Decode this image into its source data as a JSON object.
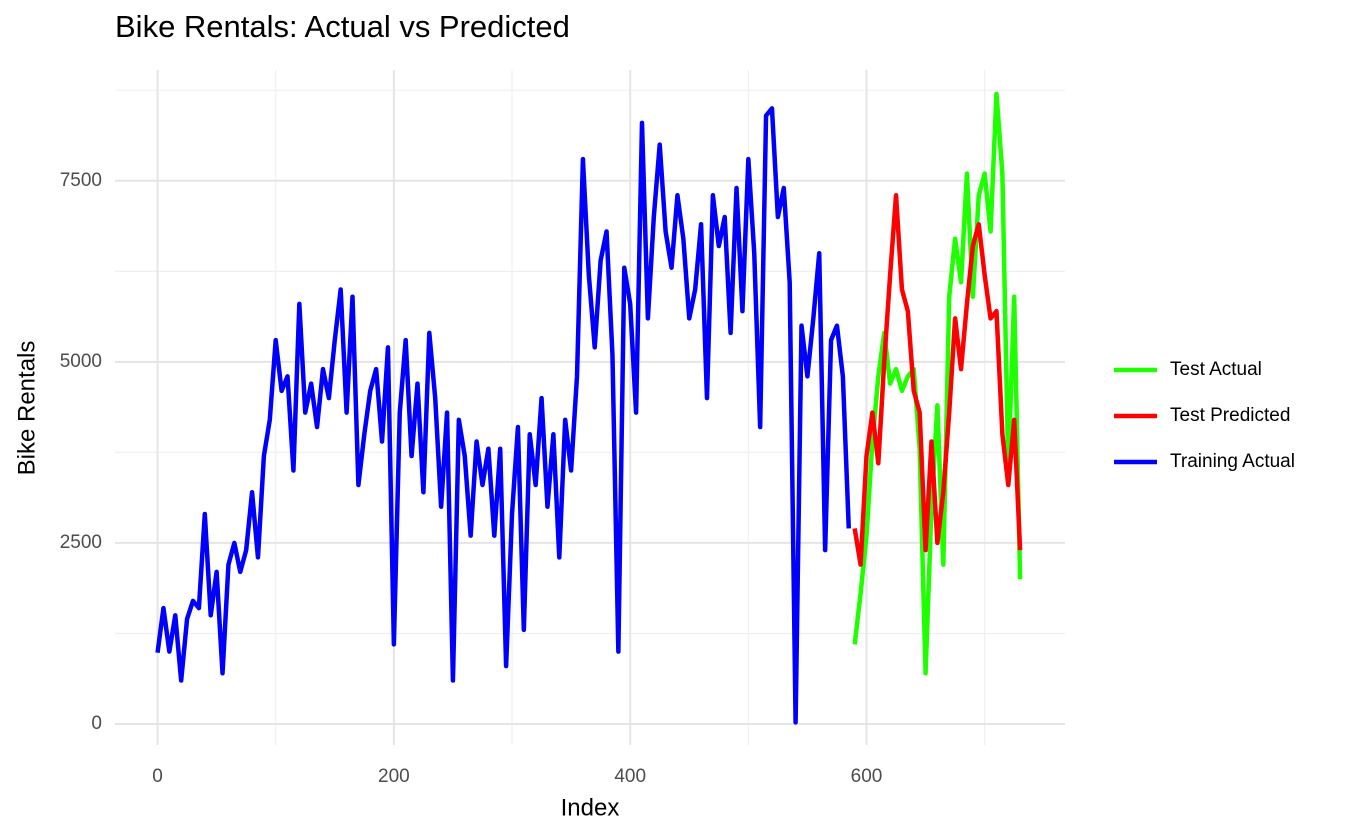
{
  "chart_data": {
    "type": "line",
    "title": "Bike Rentals: Actual vs Predicted",
    "x_label": "Index",
    "y_label": "Bike Rentals",
    "xlim": [
      -36,
      768
    ],
    "ylim": [
      -290,
      9030
    ],
    "xticks": [
      0,
      200,
      400,
      600
    ],
    "yticks": [
      0,
      2500,
      5000,
      7500
    ],
    "x_minor_gridlines": [
      100,
      300,
      500,
      700
    ],
    "y_minor_gridlines": [
      1250,
      3750,
      6250,
      8750
    ],
    "grid": true,
    "legend": "right",
    "series": [
      {
        "name": "Training Actual",
        "color": "#0000ff",
        "x": [
          0,
          5,
          10,
          15,
          20,
          25,
          30,
          35,
          40,
          45,
          50,
          55,
          60,
          65,
          70,
          75,
          80,
          85,
          90,
          95,
          100,
          105,
          110,
          115,
          120,
          125,
          130,
          135,
          140,
          145,
          150,
          155,
          160,
          165,
          170,
          175,
          180,
          185,
          190,
          195,
          200,
          205,
          210,
          215,
          220,
          225,
          230,
          235,
          240,
          245,
          250,
          255,
          260,
          265,
          270,
          275,
          280,
          285,
          290,
          295,
          300,
          305,
          310,
          315,
          320,
          325,
          330,
          335,
          340,
          345,
          350,
          355,
          360,
          365,
          370,
          375,
          380,
          385,
          390,
          395,
          400,
          405,
          410,
          415,
          420,
          425,
          430,
          435,
          440,
          445,
          450,
          455,
          460,
          465,
          470,
          475,
          480,
          485,
          490,
          495,
          500,
          505,
          510,
          515,
          520,
          525,
          530,
          535,
          540,
          545,
          550,
          555,
          560,
          565,
          570,
          575,
          580,
          585
        ],
        "values": [
          985,
          1600,
          1000,
          1500,
          600,
          1450,
          1700,
          1600,
          2900,
          1500,
          2100,
          700,
          2200,
          2500,
          2100,
          2400,
          3200,
          2300,
          3700,
          4200,
          5300,
          4600,
          4800,
          3500,
          5800,
          4300,
          4700,
          4100,
          4900,
          4500,
          5300,
          6000,
          4300,
          5900,
          3300,
          4000,
          4600,
          4900,
          3900,
          5200,
          1100,
          4300,
          5300,
          3700,
          4700,
          3200,
          5400,
          4500,
          3000,
          4300,
          600,
          4200,
          3700,
          2600,
          3900,
          3300,
          3800,
          2600,
          3800,
          800,
          2900,
          4100,
          1300,
          4000,
          3300,
          4500,
          3000,
          4000,
          2300,
          4200,
          3500,
          4800,
          7800,
          6200,
          5200,
          6400,
          6800,
          5100,
          1000,
          6300,
          5800,
          4300,
          8300,
          5600,
          7000,
          8000,
          6800,
          6300,
          7300,
          6700,
          5600,
          6000,
          6900,
          4500,
          7300,
          6600,
          7000,
          5400,
          7400,
          5700,
          7800,
          6500,
          4100,
          8400,
          8500,
          7000,
          7400,
          6100,
          22,
          5500,
          4800,
          5600,
          6500,
          2400,
          5300,
          5500,
          4800,
          2700
        ]
      },
      {
        "name": "Test Actual",
        "color": "#1eff00",
        "x": [
          590,
          595,
          600,
          605,
          610,
          615,
          620,
          625,
          630,
          635,
          640,
          645,
          650,
          655,
          660,
          665,
          670,
          675,
          680,
          685,
          690,
          695,
          700,
          705,
          710,
          715,
          720,
          725,
          730
        ],
        "values": [
          1100,
          1800,
          2600,
          3900,
          4800,
          5400,
          4700,
          4900,
          4600,
          4800,
          4900,
          3800,
          700,
          3000,
          4400,
          2200,
          5900,
          6700,
          6100,
          7600,
          5900,
          7300,
          7600,
          6800,
          8700,
          7600,
          3500,
          5900,
          2000
        ]
      },
      {
        "name": "Test Predicted",
        "color": "#ff0000",
        "x": [
          590,
          595,
          600,
          605,
          610,
          615,
          620,
          625,
          630,
          635,
          640,
          645,
          650,
          655,
          660,
          665,
          670,
          675,
          680,
          685,
          690,
          695,
          700,
          705,
          710,
          715,
          720,
          725,
          730
        ],
        "values": [
          2700,
          2200,
          3700,
          4300,
          3600,
          5000,
          6200,
          7300,
          6000,
          5700,
          4600,
          4300,
          2400,
          3900,
          2500,
          3200,
          4300,
          5600,
          4900,
          5800,
          6600,
          6900,
          6200,
          5600,
          5700,
          4000,
          3300,
          4200,
          2400
        ]
      }
    ]
  }
}
